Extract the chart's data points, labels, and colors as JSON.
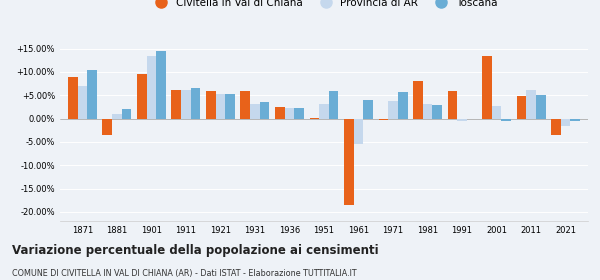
{
  "years": [
    1871,
    1881,
    1901,
    1911,
    1921,
    1931,
    1936,
    1951,
    1961,
    1971,
    1981,
    1991,
    2001,
    2011,
    2021
  ],
  "civitella": [
    9.0,
    -3.5,
    9.5,
    6.2,
    6.0,
    6.0,
    2.5,
    0.2,
    -18.5,
    -0.3,
    8.0,
    5.8,
    13.5,
    4.8,
    -3.5
  ],
  "provincia": [
    7.0,
    1.0,
    13.5,
    6.2,
    5.2,
    3.2,
    2.3,
    3.2,
    -5.5,
    3.8,
    3.2,
    -0.5,
    2.7,
    6.2,
    -1.5
  ],
  "toscana": [
    10.5,
    2.0,
    14.5,
    6.5,
    5.2,
    3.5,
    2.3,
    6.0,
    4.0,
    5.7,
    3.0,
    -0.2,
    -0.5,
    5.0,
    -0.5
  ],
  "color_civitella": "#E8621A",
  "color_provincia": "#C5D8ED",
  "color_toscana": "#6AADD5",
  "title": "Variazione percentuale della popolazione ai censimenti",
  "subtitle": "COMUNE DI CIVITELLA IN VAL DI CHIANA (AR) - Dati ISTAT - Elaborazione TUTTITALIA.IT",
  "legend_labels": [
    "Civitella in Val di Chiana",
    "Provincia di AR",
    "Toscana"
  ],
  "ylim": [
    -22,
    17
  ],
  "yticks": [
    -20.0,
    -15.0,
    -10.0,
    -5.0,
    0.0,
    5.0,
    10.0,
    15.0
  ],
  "bar_width": 0.28,
  "background_color": "#eef2f7"
}
